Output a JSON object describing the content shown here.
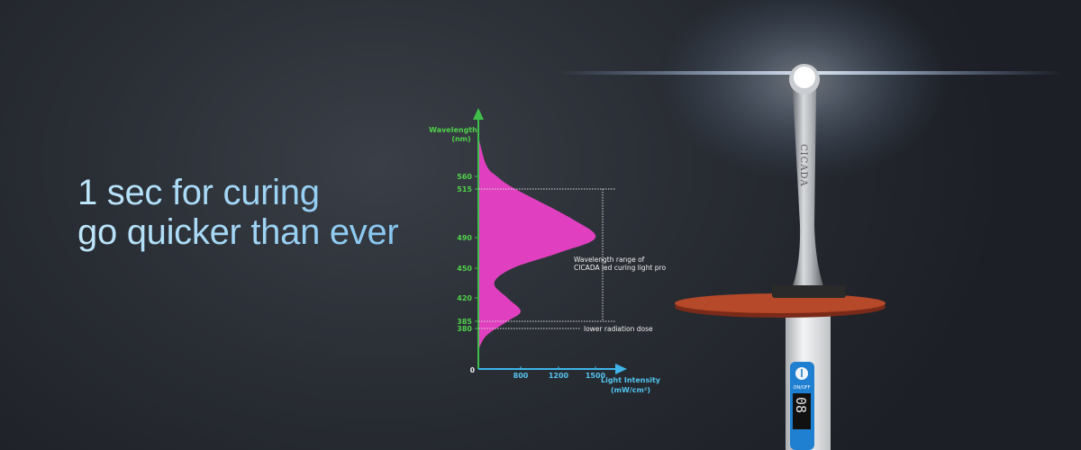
{
  "headline": {
    "line1": "1 sec for curing",
    "line2": "go quicker than ever"
  },
  "chart_data": {
    "type": "area",
    "orientation": "vertical-spectrum",
    "ylabel_line1": "Wavelength",
    "ylabel_line2": "(nm)",
    "xlabel_line1": "Light Intensity",
    "xlabel_line2": "(mW/cm²)",
    "origin_label": "0",
    "y_ticks": [
      560,
      515,
      490,
      450,
      420,
      385,
      380
    ],
    "x_ticks": [
      800,
      1200,
      1500
    ],
    "points": [
      {
        "wavelength": 700,
        "intensity": 0
      },
      {
        "wavelength": 600,
        "intensity": 150
      },
      {
        "wavelength": 560,
        "intensity": 350
      },
      {
        "wavelength": 515,
        "intensity": 700
      },
      {
        "wavelength": 500,
        "intensity": 1300
      },
      {
        "wavelength": 490,
        "intensity": 1500
      },
      {
        "wavelength": 470,
        "intensity": 1200
      },
      {
        "wavelength": 450,
        "intensity": 650
      },
      {
        "wavelength": 435,
        "intensity": 300
      },
      {
        "wavelength": 420,
        "intensity": 550
      },
      {
        "wavelength": 400,
        "intensity": 800
      },
      {
        "wavelength": 385,
        "intensity": 550
      },
      {
        "wavelength": 375,
        "intensity": 150
      },
      {
        "wavelength": 365,
        "intensity": 0
      }
    ],
    "annotations": {
      "range_line1": "Wavelength range of",
      "range_line2": "CICADA led curing light pro",
      "range_from": 385,
      "range_to": 515,
      "low_dose": "lower radiation dose",
      "low_dose_at": 380
    },
    "colors": {
      "y_axis": "#3fbf4a",
      "x_axis": "#3fb4e8",
      "y_ticks": "#4fd14a",
      "x_ticks": "#53c4ef"
    }
  },
  "device": {
    "logo_text": "CICADA",
    "power_label": "ON/OFF",
    "display_value": "08",
    "disc_color": "#b5492a",
    "button_color": "#1f7fd0"
  }
}
